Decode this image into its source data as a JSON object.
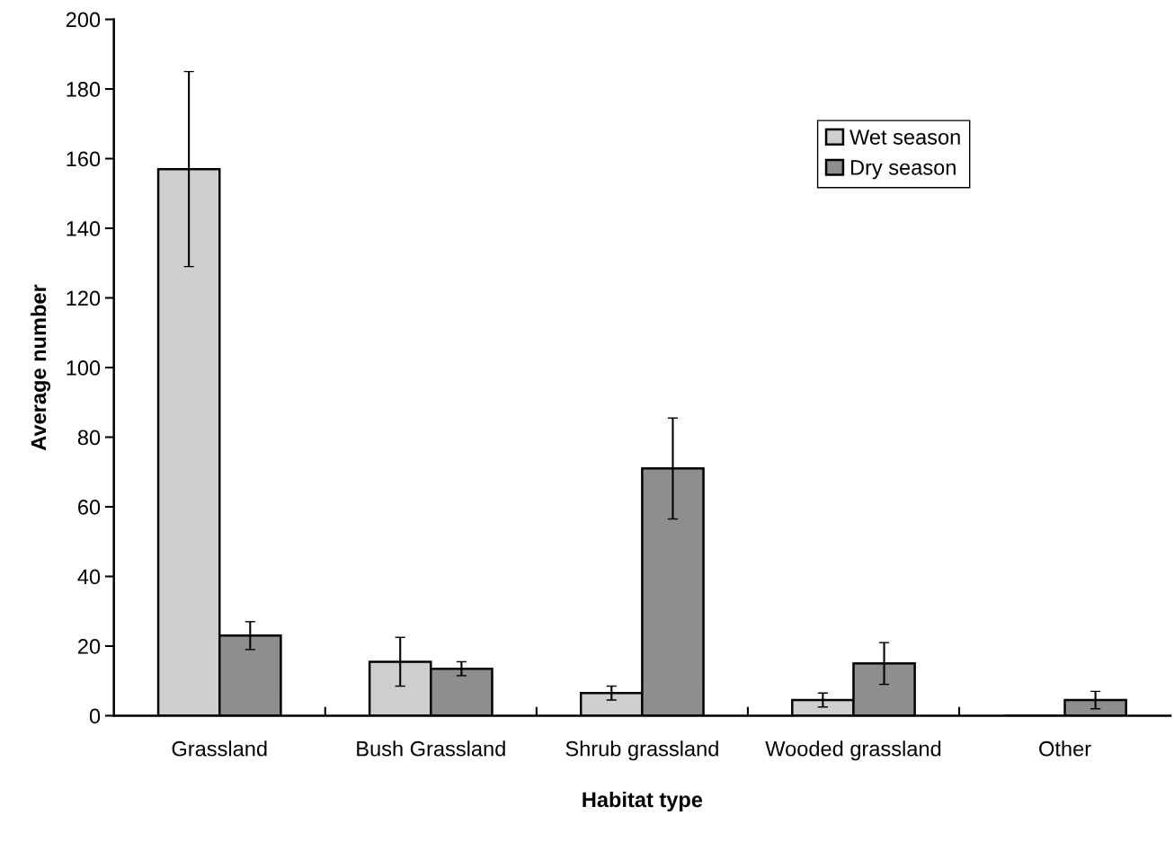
{
  "chart_data": {
    "type": "bar",
    "xlabel": "Habitat type",
    "ylabel": "Average number",
    "categories": [
      "Grassland",
      "Bush Grassland",
      "Shrub grassland",
      "Wooded grassland",
      "Other"
    ],
    "series": [
      {
        "name": "Wet season",
        "color": "#cfcfcf",
        "values": [
          157,
          15.5,
          6.5,
          4.5,
          0
        ],
        "errors": [
          28,
          7,
          2,
          2,
          null
        ]
      },
      {
        "name": "Dry season",
        "color": "#8e8e8e",
        "values": [
          23,
          13.5,
          71,
          15,
          4.5
        ],
        "errors": [
          4,
          2,
          14.5,
          6,
          2.5
        ]
      }
    ],
    "ylim": [
      0,
      200
    ],
    "yticks": [
      0,
      20,
      40,
      60,
      80,
      100,
      120,
      140,
      160,
      180,
      200
    ],
    "grid": false,
    "legend": "top right"
  }
}
